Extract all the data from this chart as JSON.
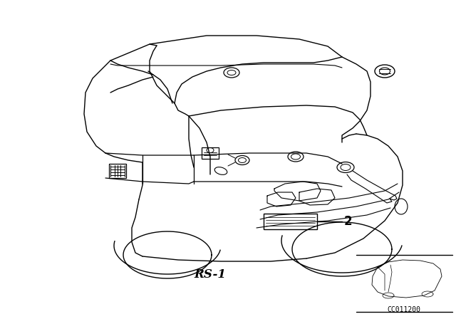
{
  "diagram_code": "CC011200",
  "label_rs1": "RS-1",
  "label_2": "2",
  "bg_color": "#ffffff",
  "line_color": "#000000",
  "text_color": "#000000",
  "fig_width": 6.4,
  "fig_height": 4.48,
  "dpi": 100
}
